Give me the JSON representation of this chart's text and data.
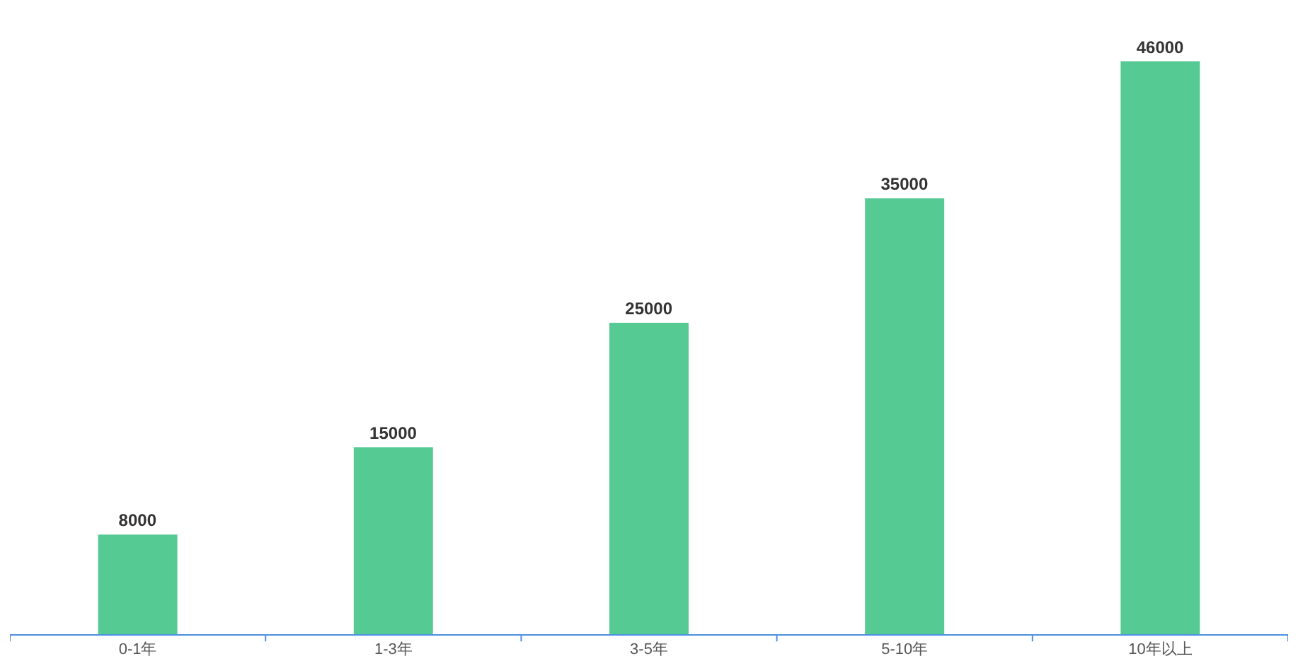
{
  "chart_data": {
    "type": "bar",
    "categories": [
      "0-1年",
      "1-3年",
      "3-5年",
      "5-10年",
      "10年以上"
    ],
    "values": [
      8000,
      15000,
      25000,
      35000,
      46000
    ],
    "color": "#55ca93",
    "data_labels": true,
    "grid": false,
    "legend": false
  }
}
